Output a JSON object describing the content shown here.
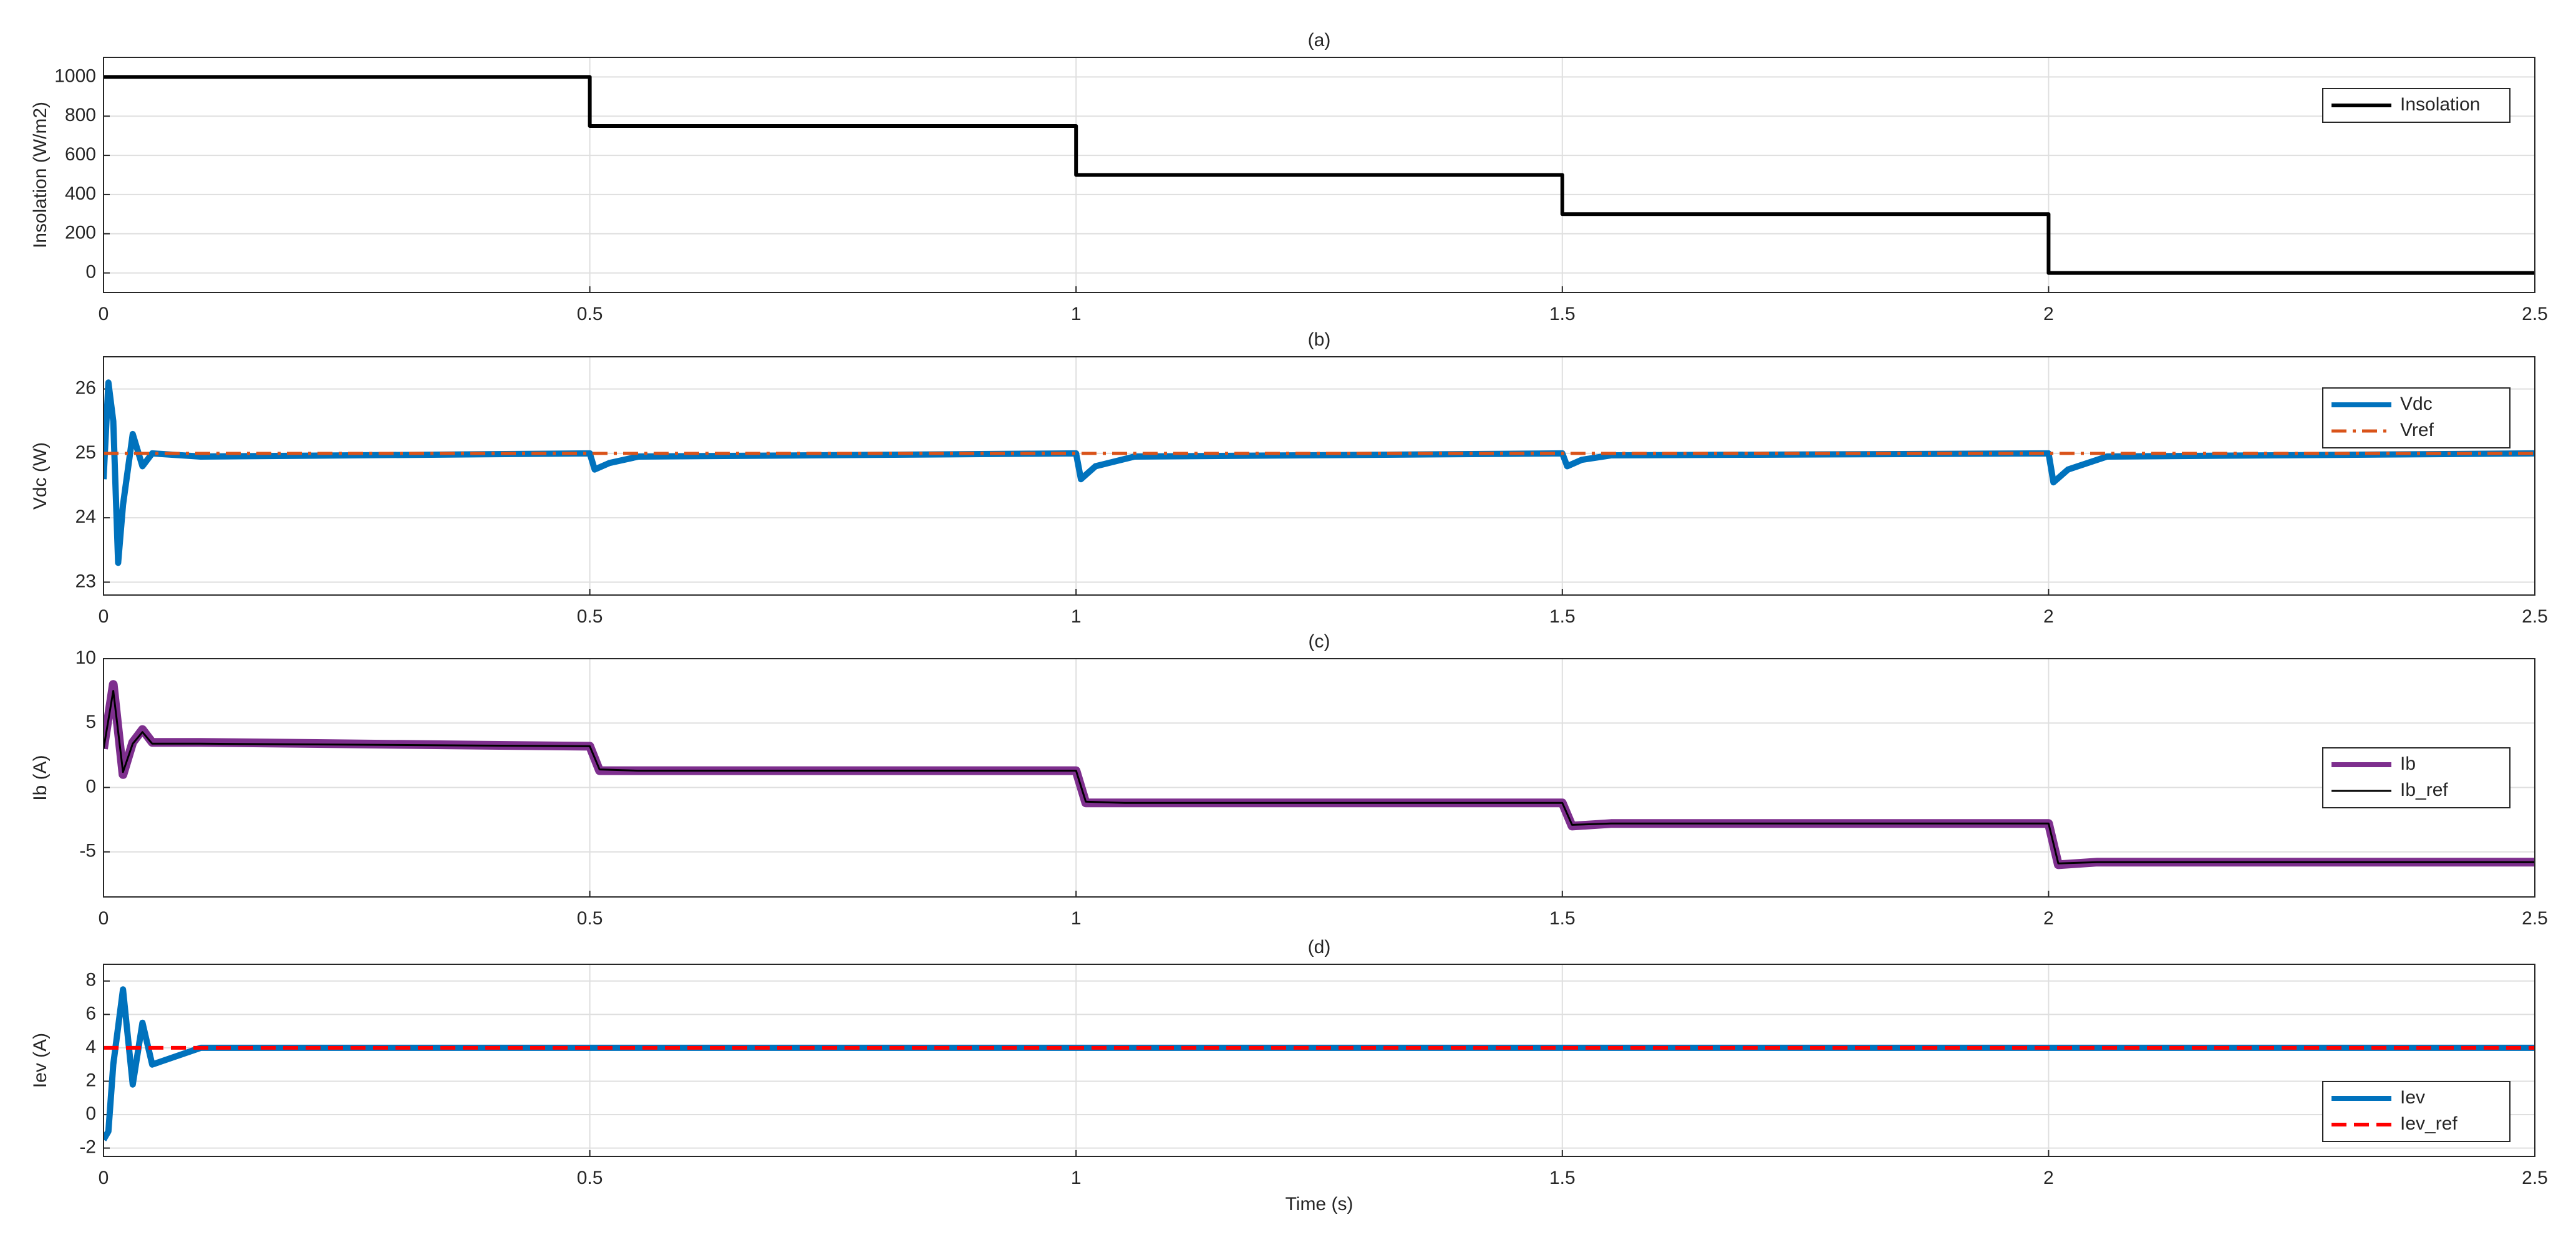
{
  "chart_data": [
    {
      "type": "line",
      "title": "(a)",
      "ylabel": "Insolation (W/m2)",
      "xlim": [
        0,
        2.5
      ],
      "xticks": [
        0,
        0.5,
        1,
        1.5,
        2,
        2.5
      ],
      "ylim": [
        -100,
        1100
      ],
      "yticks": [
        0,
        200,
        400,
        600,
        800,
        1000
      ],
      "grid": true,
      "legend": "northeast",
      "series": [
        {
          "name": "Insolation",
          "color": "#000000",
          "style": "solid",
          "linewidth": 6,
          "x": [
            0,
            0.5,
            0.5,
            1,
            1,
            1.5,
            1.5,
            2,
            2,
            2.5
          ],
          "values": [
            1000,
            1000,
            750,
            750,
            500,
            500,
            300,
            300,
            0,
            0
          ]
        }
      ]
    },
    {
      "type": "line",
      "title": "(b)",
      "ylabel": "Vdc (W)",
      "xlim": [
        0,
        2.5
      ],
      "xticks": [
        0,
        0.5,
        1,
        1.5,
        2,
        2.5
      ],
      "ylim": [
        22.8,
        26.5
      ],
      "yticks": [
        23,
        24,
        25,
        26
      ],
      "grid": true,
      "legend": "northeast",
      "series": [
        {
          "name": "Vdc",
          "color": "#0072BD",
          "style": "solid",
          "linewidth": 10,
          "x": [
            0,
            0.005,
            0.01,
            0.015,
            0.02,
            0.03,
            0.04,
            0.05,
            0.1,
            0.5,
            0.505,
            0.52,
            0.55,
            1,
            1.005,
            1.02,
            1.06,
            1.5,
            1.505,
            1.52,
            1.55,
            2,
            2.005,
            2.02,
            2.06,
            2.5
          ],
          "values": [
            24.6,
            26.1,
            25.5,
            23.3,
            24.2,
            25.3,
            24.8,
            25,
            24.95,
            25,
            24.75,
            24.85,
            24.95,
            25,
            24.6,
            24.8,
            24.95,
            25,
            24.8,
            24.9,
            24.97,
            25,
            24.55,
            24.75,
            24.95,
            25
          ]
        },
        {
          "name": "Vref",
          "color": "#D95319",
          "style": "dashdot",
          "linewidth": 5,
          "x": [
            0,
            2.5
          ],
          "values": [
            25,
            25
          ]
        }
      ]
    },
    {
      "type": "line",
      "title": "(c)",
      "ylabel": "Ib (A)",
      "xlim": [
        0,
        2.5
      ],
      "xticks": [
        0,
        0.5,
        1,
        1.5,
        2,
        2.5
      ],
      "ylim": [
        -8.5,
        10
      ],
      "yticks": [
        -5,
        0,
        5,
        10
      ],
      "grid": true,
      "legend": "east",
      "series": [
        {
          "name": "Ib",
          "color": "#7E2F8E",
          "style": "solid",
          "linewidth": 14,
          "x": [
            0,
            0.01,
            0.02,
            0.03,
            0.04,
            0.05,
            0.1,
            0.5,
            0.51,
            0.55,
            1,
            1.01,
            1.05,
            1.5,
            1.51,
            1.55,
            2,
            2.01,
            2.05,
            2.5
          ],
          "values": [
            3,
            8,
            1,
            3.5,
            4.5,
            3.5,
            3.5,
            3.2,
            1.3,
            1.3,
            1.3,
            -1.2,
            -1.2,
            -1.2,
            -3,
            -2.8,
            -2.8,
            -6,
            -5.8,
            -5.8
          ]
        },
        {
          "name": "Ib_ref",
          "color": "#000000",
          "style": "solid",
          "linewidth": 3,
          "x": [
            0,
            0.01,
            0.02,
            0.03,
            0.04,
            0.05,
            0.1,
            0.5,
            0.51,
            0.55,
            1,
            1.01,
            1.05,
            1.5,
            1.51,
            1.55,
            2,
            2.01,
            2.05,
            2.5
          ],
          "values": [
            3,
            7.5,
            1.2,
            3.4,
            4.3,
            3.4,
            3.4,
            3.2,
            1.4,
            1.3,
            1.3,
            -1.1,
            -1.2,
            -1.2,
            -2.9,
            -2.8,
            -2.8,
            -5.9,
            -5.8,
            -5.8
          ]
        }
      ]
    },
    {
      "type": "line",
      "title": "(d)",
      "ylabel": "Iev (A)",
      "xlabel": "Time (s)",
      "xlim": [
        0,
        2.5
      ],
      "xticks": [
        0,
        0.5,
        1,
        1.5,
        2,
        2.5
      ],
      "ylim": [
        -2.5,
        9
      ],
      "yticks": [
        -2,
        0,
        2,
        4,
        6,
        8
      ],
      "grid": true,
      "legend": "southeast",
      "series": [
        {
          "name": "Iev",
          "color": "#0072BD",
          "style": "solid",
          "linewidth": 10,
          "x": [
            0,
            0.005,
            0.01,
            0.02,
            0.03,
            0.04,
            0.05,
            0.1,
            2.5
          ],
          "values": [
            -1.5,
            -1,
            3,
            7.5,
            1.8,
            5.5,
            3,
            4,
            4
          ]
        },
        {
          "name": "Iev_ref",
          "color": "#FF0000",
          "style": "dashed",
          "linewidth": 6,
          "x": [
            0,
            2.5
          ],
          "values": [
            4,
            4
          ]
        }
      ]
    }
  ]
}
